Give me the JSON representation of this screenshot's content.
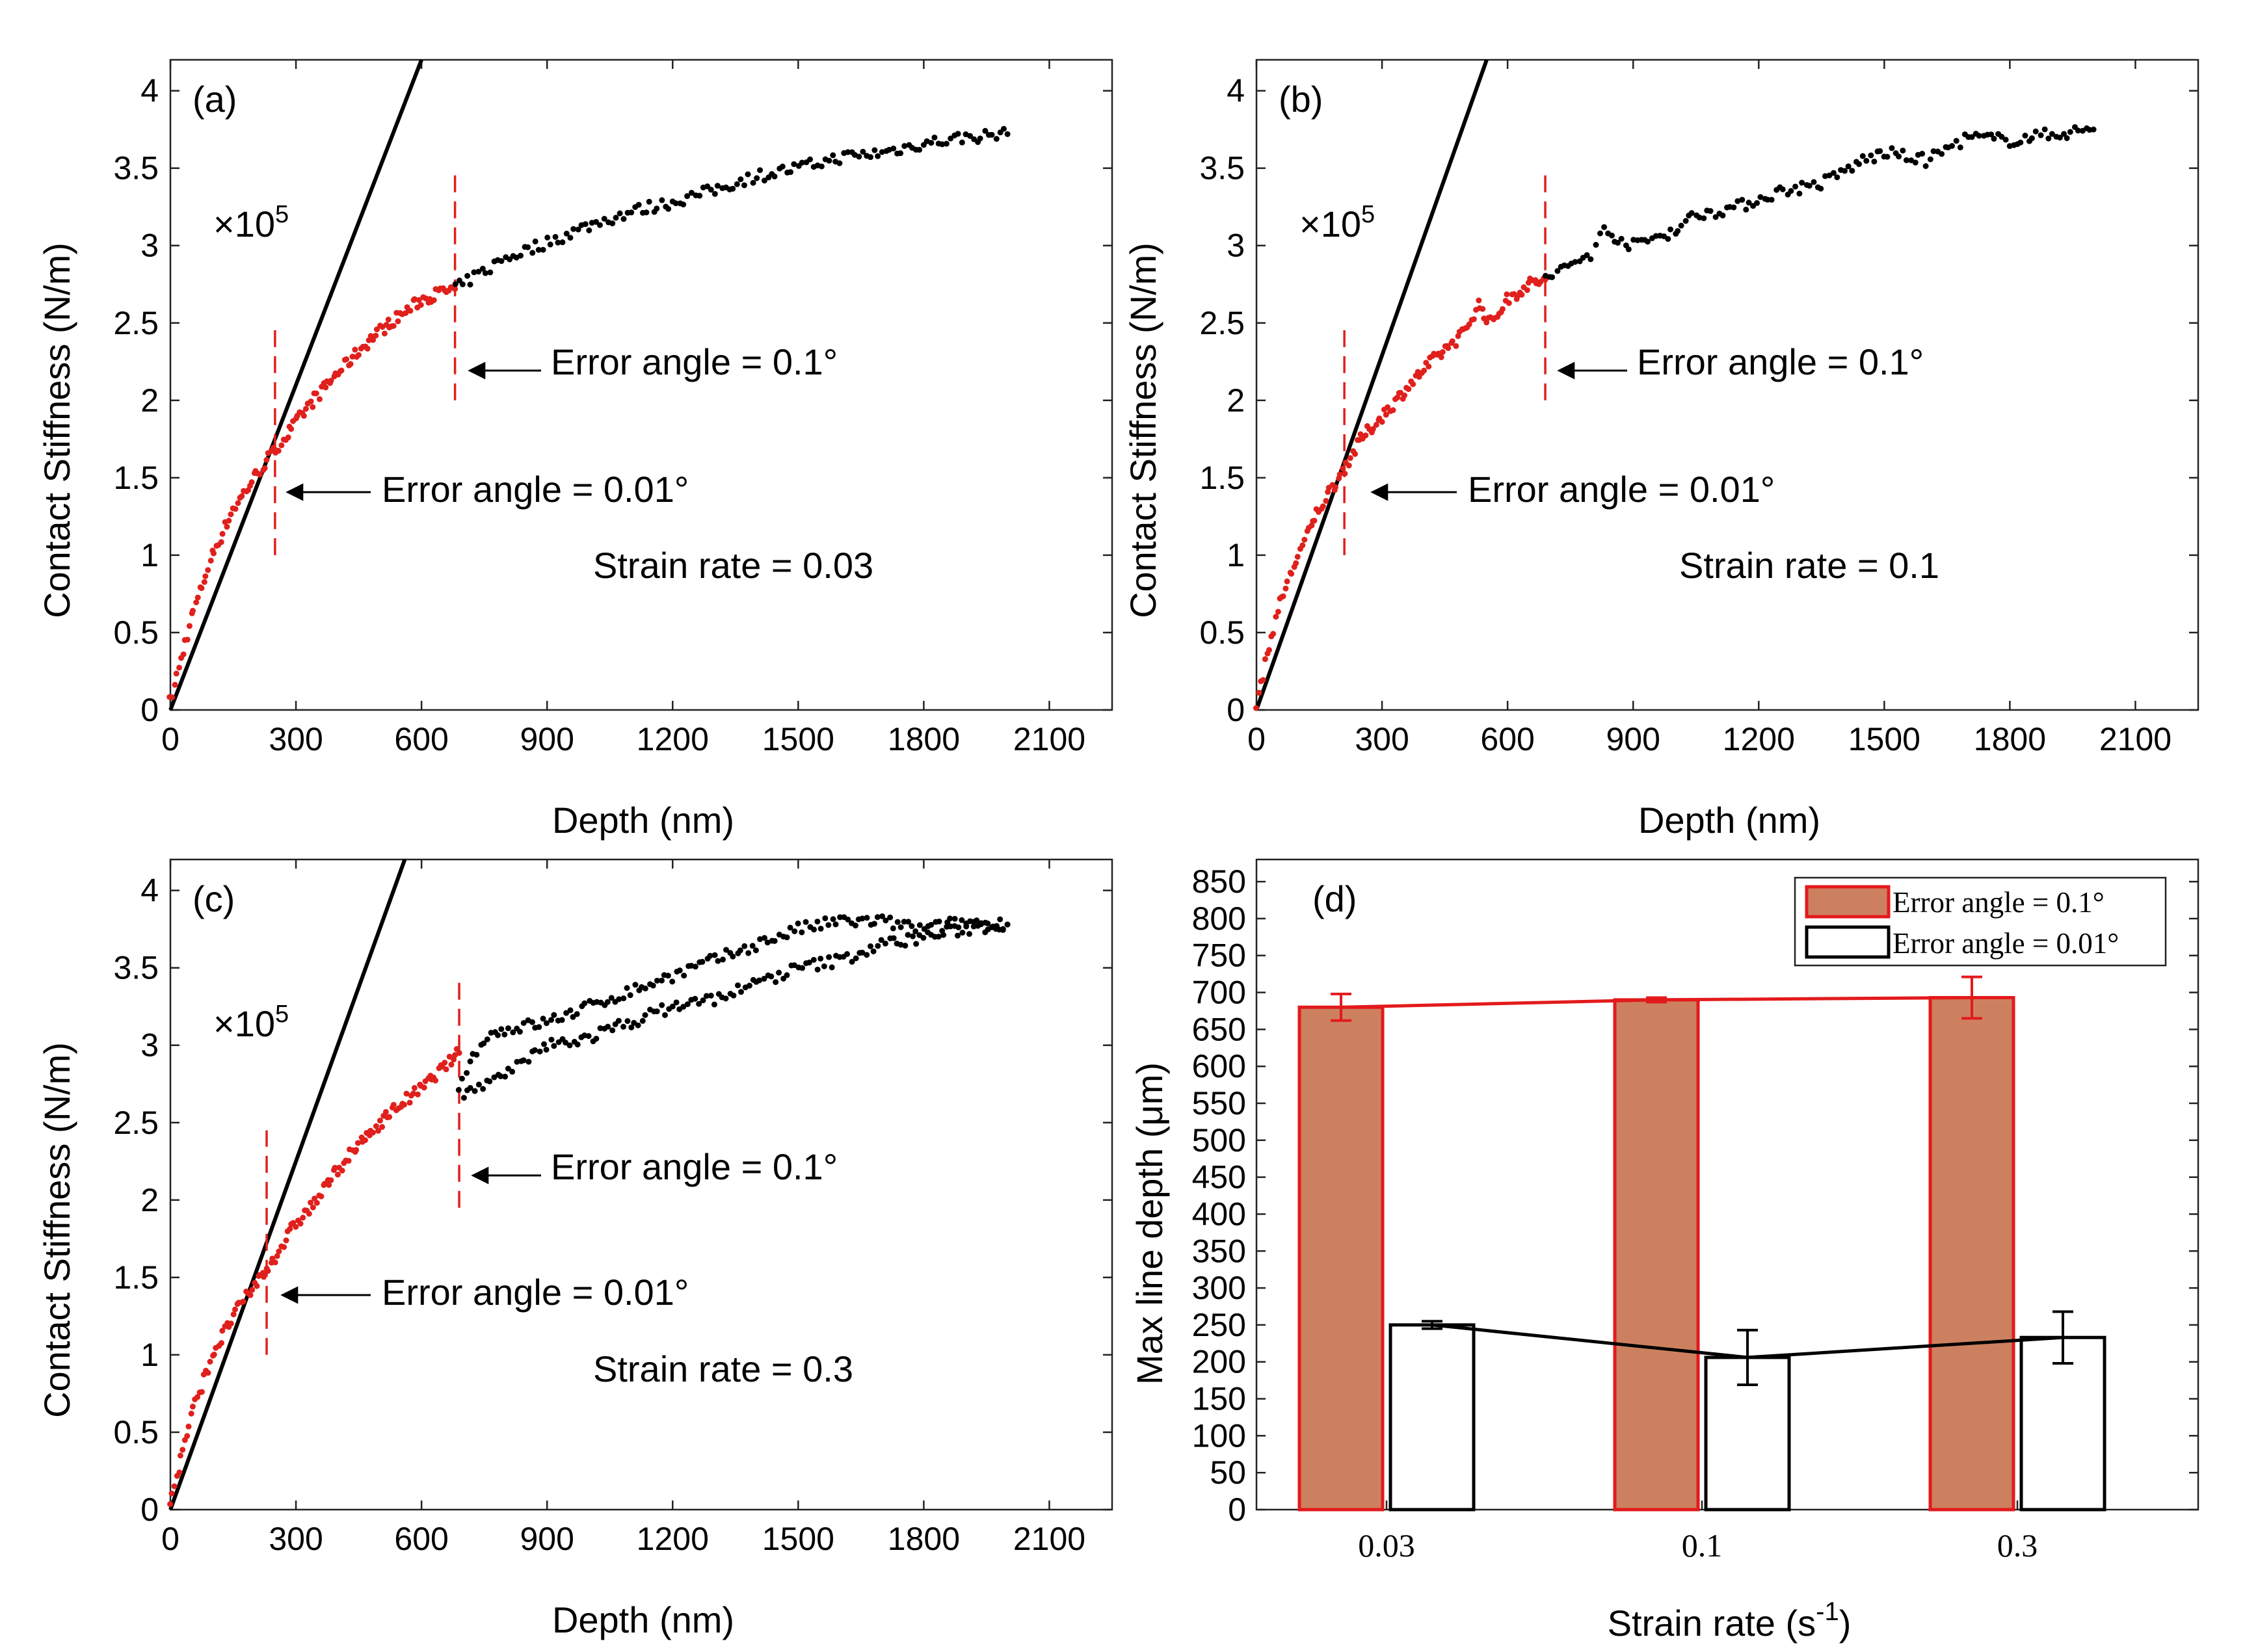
{
  "chart_data": [
    {
      "type": "scatter",
      "panel": "(a)",
      "xlabel": "Depth (nm)",
      "ylabel": "Contact Stiffness (N/m)",
      "xlim": [
        0,
        2250
      ],
      "ylim": [
        0,
        4.2
      ],
      "xticks": [
        "0",
        "300",
        "600",
        "900",
        "1200",
        "1500",
        "1800",
        "2100"
      ],
      "yticks": [
        "0",
        "0.5",
        "1",
        "1.5",
        "2",
        "2.5",
        "3",
        "3.5",
        "4"
      ],
      "y_multiplier": "×10",
      "y_multiplier_exp": "5",
      "fit_line": {
        "x": [
          0,
          600
        ],
        "y": [
          0,
          4.2
        ]
      },
      "vlines": [
        {
          "x": 250,
          "y": [
            1.0,
            2.5
          ]
        },
        {
          "x": 680,
          "y": [
            2.0,
            3.5
          ]
        }
      ],
      "annotations": [
        {
          "text": "Error angle = 0.1°",
          "arrow_to": [
            680,
            2.27
          ]
        },
        {
          "text": "Error angle = 0.01°",
          "arrow_to": [
            250,
            1.47
          ]
        },
        {
          "text": "Strain rate = 0.03"
        }
      ],
      "series": [
        {
          "name": "red",
          "color": "#e0201c",
          "points": [
            [
              0,
              0.05
            ],
            [
              50,
              0.6
            ],
            [
              100,
              1.0
            ],
            [
              150,
              1.3
            ],
            [
              200,
              1.5
            ],
            [
              250,
              1.68
            ],
            [
              300,
              1.85
            ],
            [
              350,
              2.03
            ],
            [
              400,
              2.18
            ],
            [
              450,
              2.32
            ],
            [
              500,
              2.45
            ],
            [
              550,
              2.55
            ],
            [
              600,
              2.65
            ],
            [
              650,
              2.7
            ],
            [
              680,
              2.72
            ]
          ]
        },
        {
          "name": "black",
          "color": "#000000",
          "points": [
            [
              680,
              2.72
            ],
            [
              800,
              2.92
            ],
            [
              900,
              3.02
            ],
            [
              1000,
              3.13
            ],
            [
              1100,
              3.22
            ],
            [
              1200,
              3.28
            ],
            [
              1300,
              3.36
            ],
            [
              1400,
              3.45
            ],
            [
              1500,
              3.5
            ],
            [
              1600,
              3.57
            ],
            [
              1700,
              3.6
            ],
            [
              1800,
              3.66
            ],
            [
              1900,
              3.7
            ],
            [
              2000,
              3.72
            ]
          ]
        }
      ]
    },
    {
      "type": "scatter",
      "panel": "(b)",
      "xlabel": "Depth (nm)",
      "ylabel": "Contact Stiffness (N/m)",
      "xlim": [
        0,
        2250
      ],
      "ylim": [
        0,
        4.2
      ],
      "xticks": [
        "0",
        "300",
        "600",
        "900",
        "1200",
        "1500",
        "1800",
        "2100"
      ],
      "yticks": [
        "0",
        "0.5",
        "1",
        "1.5",
        "2",
        "2.5",
        "3",
        "3.5",
        "4"
      ],
      "y_multiplier": "×10",
      "y_multiplier_exp": "5",
      "fit_line": {
        "x": [
          0,
          550
        ],
        "y": [
          0,
          4.2
        ]
      },
      "vlines": [
        {
          "x": 210,
          "y": [
            1.0,
            2.5
          ]
        },
        {
          "x": 690,
          "y": [
            2.0,
            3.5
          ]
        }
      ],
      "annotations": [
        {
          "text": "Error angle = 0.1°",
          "arrow_to": [
            690,
            2.27
          ]
        },
        {
          "text": "Error angle = 0.01°",
          "arrow_to": [
            210,
            1.47
          ]
        },
        {
          "text": "Strain rate = 0.1"
        }
      ],
      "series": [
        {
          "name": "red",
          "color": "#e0201c",
          "points": [
            [
              0,
              0.05
            ],
            [
              50,
              0.65
            ],
            [
              100,
              1.0
            ],
            [
              150,
              1.3
            ],
            [
              200,
              1.52
            ],
            [
              250,
              1.75
            ],
            [
              300,
              1.9
            ],
            [
              350,
              2.05
            ],
            [
              400,
              2.2
            ],
            [
              450,
              2.33
            ],
            [
              500,
              2.45
            ],
            [
              530,
              2.62
            ],
            [
              560,
              2.5
            ],
            [
              600,
              2.65
            ],
            [
              650,
              2.75
            ],
            [
              690,
              2.78
            ]
          ]
        },
        {
          "name": "black",
          "color": "#000000",
          "points": [
            [
              690,
              2.78
            ],
            [
              800,
              2.95
            ],
            [
              830,
              3.1
            ],
            [
              900,
              3.0
            ],
            [
              1000,
              3.1
            ],
            [
              1050,
              3.2
            ],
            [
              1150,
              3.25
            ],
            [
              1250,
              3.35
            ],
            [
              1350,
              3.4
            ],
            [
              1450,
              3.55
            ],
            [
              1500,
              3.6
            ],
            [
              1600,
              3.55
            ],
            [
              1700,
              3.7
            ],
            [
              1800,
              3.68
            ],
            [
              1900,
              3.72
            ],
            [
              2000,
              3.75
            ]
          ]
        }
      ]
    },
    {
      "type": "scatter",
      "panel": "(c)",
      "xlabel": "Depth (nm)",
      "ylabel": "Contact Stiffness (N/m)",
      "xlim": [
        0,
        2250
      ],
      "ylim": [
        0,
        4.2
      ],
      "xticks": [
        "0",
        "300",
        "600",
        "900",
        "1200",
        "1500",
        "1800",
        "2100"
      ],
      "yticks": [
        "0",
        "0.5",
        "1",
        "1.5",
        "2",
        "2.5",
        "3",
        "3.5",
        "4"
      ],
      "y_multiplier": "×10",
      "y_multiplier_exp": "5",
      "fit_line": {
        "x": [
          0,
          560
        ],
        "y": [
          0,
          4.2
        ]
      },
      "vlines": [
        {
          "x": 230,
          "y": [
            1.0,
            2.45
          ]
        },
        {
          "x": 690,
          "y": [
            1.95,
            3.45
          ]
        }
      ],
      "annotations": [
        {
          "text": "Error angle = 0.1°",
          "arrow_to": [
            690,
            2.2
          ]
        },
        {
          "text": "Error angle = 0.01°",
          "arrow_to": [
            230,
            1.4
          ]
        },
        {
          "text": "Strain rate = 0.3"
        }
      ],
      "series": [
        {
          "name": "red",
          "color": "#e0201c",
          "points": [
            [
              0,
              0.05
            ],
            [
              50,
              0.6
            ],
            [
              100,
              1.0
            ],
            [
              150,
              1.25
            ],
            [
              200,
              1.45
            ],
            [
              230,
              1.55
            ],
            [
              300,
              1.85
            ],
            [
              350,
              2.0
            ],
            [
              400,
              2.2
            ],
            [
              450,
              2.35
            ],
            [
              500,
              2.5
            ],
            [
              550,
              2.62
            ],
            [
              600,
              2.72
            ],
            [
              650,
              2.85
            ],
            [
              690,
              2.95
            ]
          ]
        },
        {
          "name": "black",
          "color": "#000000",
          "points": [
            [
              690,
              2.75
            ],
            [
              750,
              3.05
            ],
            [
              800,
              3.1
            ],
            [
              900,
              3.15
            ],
            [
              1000,
              3.25
            ],
            [
              1100,
              3.35
            ],
            [
              1200,
              3.45
            ],
            [
              1300,
              3.55
            ],
            [
              1400,
              3.65
            ],
            [
              1500,
              3.75
            ],
            [
              1600,
              3.8
            ],
            [
              1700,
              3.8
            ],
            [
              1800,
              3.75
            ],
            [
              1900,
              3.8
            ],
            [
              2000,
              3.78
            ]
          ]
        },
        {
          "name": "black-lower",
          "color": "#000000",
          "points": [
            [
              700,
              2.7
            ],
            [
              800,
              2.8
            ],
            [
              900,
              3.0
            ],
            [
              1000,
              3.05
            ],
            [
              1100,
              3.15
            ],
            [
              1200,
              3.25
            ],
            [
              1300,
              3.3
            ],
            [
              1400,
              3.4
            ],
            [
              1500,
              3.5
            ],
            [
              1600,
              3.55
            ],
            [
              1700,
              3.65
            ],
            [
              1800,
              3.7
            ],
            [
              1900,
              3.75
            ],
            [
              2000,
              3.78
            ]
          ]
        }
      ]
    },
    {
      "type": "bar",
      "panel": "(d)",
      "xlabel": "Strain rate (s",
      "xlabel_exp": "-1",
      "xlabel_close": ")",
      "ylabel": "Max line depth (μm)",
      "categories": [
        "0.03",
        "0.1",
        "0.3"
      ],
      "ylim": [
        0,
        880
      ],
      "yticks": [
        "0",
        "50",
        "100",
        "150",
        "200",
        "250",
        "300",
        "350",
        "400",
        "450",
        "500",
        "550",
        "600",
        "650",
        "700",
        "750",
        "800",
        "850"
      ],
      "legend_position": "top-right",
      "series": [
        {
          "name": "Error angle = 0.1°",
          "face": "#cd8060",
          "edge": "#e31a1c",
          "values": [
            680,
            690,
            693
          ],
          "errors": [
            18,
            3,
            28
          ]
        },
        {
          "name": "Error angle = 0.01°",
          "face": "#ffffff",
          "edge": "#000000",
          "values": [
            250,
            206,
            233
          ],
          "errors": [
            5,
            37,
            35
          ]
        }
      ]
    }
  ]
}
